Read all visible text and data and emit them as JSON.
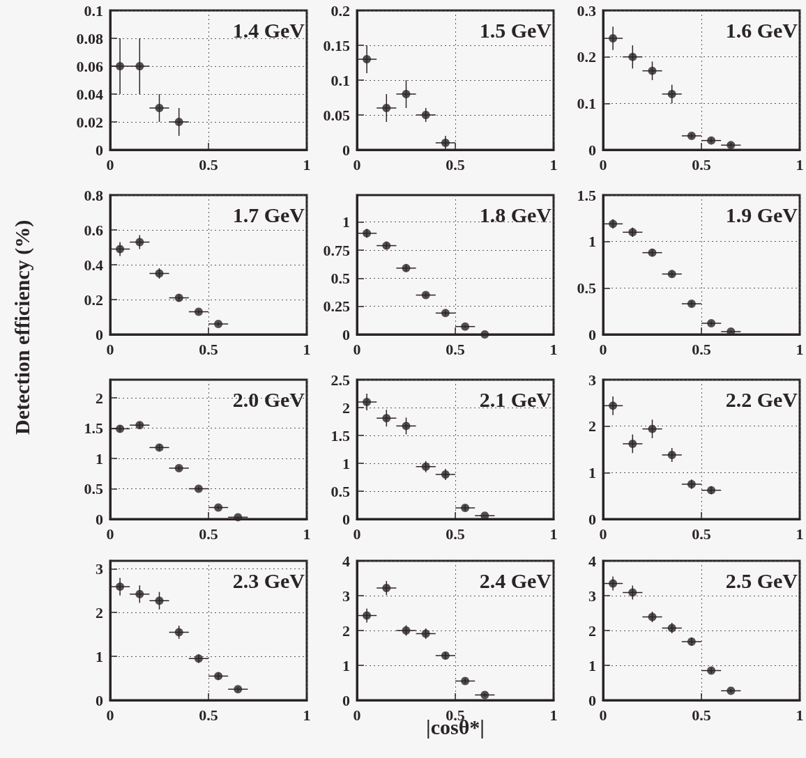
{
  "chart_data": [
    {
      "type": "scatter",
      "title": "1.4 GeV",
      "x": [
        0.05,
        0.15,
        0.25,
        0.35
      ],
      "values": [
        0.06,
        0.06,
        0.03,
        0.02
      ],
      "errors": [
        0.02,
        0.02,
        0.01,
        0.01
      ],
      "xerrors": [
        0.05,
        0.05,
        0.05,
        0.05
      ],
      "xlim": [
        0,
        1
      ],
      "xticks": [
        0,
        0.5,
        1
      ],
      "ylim": [
        0,
        0.1
      ],
      "yticks": [
        0,
        0.02,
        0.04,
        0.06,
        0.08,
        0.1
      ],
      "grid": true,
      "marker": "circle"
    },
    {
      "type": "scatter",
      "title": "1.5 GeV",
      "x": [
        0.05,
        0.15,
        0.25,
        0.35,
        0.45
      ],
      "values": [
        0.13,
        0.06,
        0.08,
        0.05,
        0.01
      ],
      "errors": [
        0.02,
        0.02,
        0.02,
        0.01,
        0.01
      ],
      "xerrors": [
        0.05,
        0.05,
        0.05,
        0.05,
        0.05
      ],
      "xlim": [
        0,
        1
      ],
      "xticks": [
        0,
        0.5,
        1
      ],
      "ylim": [
        0,
        0.2
      ],
      "yticks": [
        0,
        0.05,
        0.1,
        0.15,
        0.2
      ],
      "grid": true,
      "marker": "circle"
    },
    {
      "type": "scatter",
      "title": "1.6 GeV",
      "x": [
        0.05,
        0.15,
        0.25,
        0.35,
        0.45,
        0.55,
        0.65
      ],
      "values": [
        0.24,
        0.2,
        0.17,
        0.12,
        0.03,
        0.02,
        0.01
      ],
      "errors": [
        0.025,
        0.025,
        0.02,
        0.02,
        0.005,
        0.005,
        0.005
      ],
      "xerrors": [
        0.05,
        0.05,
        0.05,
        0.05,
        0.05,
        0.05,
        0.05
      ],
      "xlim": [
        0,
        1
      ],
      "xticks": [
        0,
        0.5,
        1
      ],
      "ylim": [
        0,
        0.3
      ],
      "yticks": [
        0,
        0.1,
        0.2,
        0.3
      ],
      "grid": true,
      "marker": "circle"
    },
    {
      "type": "scatter",
      "title": "1.7 GeV",
      "ylabel": "Detection efficiency (%)",
      "x": [
        0.05,
        0.15,
        0.25,
        0.35,
        0.45,
        0.55
      ],
      "values": [
        0.49,
        0.53,
        0.35,
        0.21,
        0.13,
        0.06
      ],
      "errors": [
        0.04,
        0.04,
        0.03,
        0.02,
        0.01,
        0.01
      ],
      "xerrors": [
        0.05,
        0.05,
        0.05,
        0.05,
        0.05,
        0.05
      ],
      "xlim": [
        0,
        1
      ],
      "xticks": [
        0,
        0.5,
        1
      ],
      "ylim": [
        0,
        0.8
      ],
      "yticks": [
        0,
        0.2,
        0.4,
        0.6,
        0.8
      ],
      "grid": true,
      "marker": "circle"
    },
    {
      "type": "scatter",
      "title": "1.8 GeV",
      "x": [
        0.05,
        0.15,
        0.25,
        0.35,
        0.45,
        0.55,
        0.65
      ],
      "values": [
        0.9,
        0.79,
        0.59,
        0.35,
        0.19,
        0.07,
        0
      ],
      "errors": [
        0.04,
        0.03,
        0.03,
        0.02,
        0.02,
        0.01,
        null
      ],
      "xerrors": [
        0.05,
        0.05,
        0.05,
        0.05,
        0.05,
        0.05,
        0.05
      ],
      "xlim": [
        0,
        1
      ],
      "xticks": [
        0,
        0.5,
        1
      ],
      "ylim": [
        0,
        1.24
      ],
      "yticks": [
        0,
        0.25,
        0.5,
        0.75,
        1
      ],
      "grid": true,
      "marker": "circle"
    },
    {
      "type": "scatter",
      "title": "1.9 GeV",
      "x": [
        0.05,
        0.15,
        0.25,
        0.35,
        0.45,
        0.55,
        0.65
      ],
      "values": [
        1.19,
        1.1,
        0.88,
        0.65,
        0.33,
        0.12,
        0.03
      ],
      "errors": [
        0.05,
        0.05,
        0.04,
        0.03,
        0.03,
        0.02,
        0.01
      ],
      "xerrors": [
        0.05,
        0.05,
        0.05,
        0.05,
        0.05,
        0.05,
        0.05
      ],
      "xlim": [
        0,
        1
      ],
      "xticks": [
        0,
        0.5,
        1
      ],
      "ylim": [
        0,
        1.5
      ],
      "yticks": [
        0,
        0.5,
        1,
        1.5
      ],
      "grid": true,
      "marker": "circle"
    },
    {
      "type": "scatter",
      "title": "2.0 GeV",
      "x": [
        0.05,
        0.15,
        0.25,
        0.35,
        0.45,
        0.55,
        0.65
      ],
      "values": [
        1.49,
        1.55,
        1.18,
        0.84,
        0.5,
        0.19,
        0.03
      ],
      "errors": [
        0.05,
        0.05,
        0.05,
        0.04,
        0.03,
        0.03,
        null
      ],
      "xerrors": [
        0.05,
        0.05,
        0.05,
        0.05,
        0.05,
        0.05,
        0.05
      ],
      "xlim": [
        0,
        1
      ],
      "xticks": [
        0,
        0.5,
        1
      ],
      "ylim": [
        0,
        2.3
      ],
      "yticks": [
        0,
        0.5,
        1,
        1.5,
        2
      ],
      "grid": true,
      "marker": "circle"
    },
    {
      "type": "scatter",
      "title": "2.1 GeV",
      "x": [
        0.05,
        0.15,
        0.25,
        0.35,
        0.45,
        0.55,
        0.65
      ],
      "values": [
        2.1,
        1.81,
        1.67,
        0.94,
        0.8,
        0.2,
        0.06
      ],
      "errors": [
        0.15,
        0.15,
        0.15,
        0.1,
        0.1,
        0.05,
        null
      ],
      "xerrors": [
        0.05,
        0.05,
        0.05,
        0.05,
        0.05,
        0.05,
        0.05
      ],
      "xlim": [
        0,
        1
      ],
      "xticks": [
        0,
        0.5,
        1
      ],
      "ylim": [
        0,
        2.5
      ],
      "yticks": [
        0,
        0.5,
        1,
        1.5,
        2,
        2.5
      ],
      "grid": true,
      "marker": "circle"
    },
    {
      "type": "scatter",
      "title": "2.2 GeV",
      "x": [
        0.05,
        0.15,
        0.25,
        0.35,
        0.45,
        0.55
      ],
      "values": [
        2.44,
        1.62,
        1.94,
        1.38,
        0.75,
        0.62
      ],
      "errors": [
        0.2,
        0.2,
        0.2,
        0.15,
        0.1,
        0.08
      ],
      "xerrors": [
        0.05,
        0.05,
        0.05,
        0.05,
        0.05,
        0.05
      ],
      "xlim": [
        0,
        1
      ],
      "xticks": [
        0,
        0.5,
        1
      ],
      "ylim": [
        0,
        3
      ],
      "yticks": [
        0,
        1,
        2,
        3
      ],
      "grid": true,
      "marker": "circle"
    },
    {
      "type": "scatter",
      "title": "2.3 GeV",
      "x": [
        0.05,
        0.15,
        0.25,
        0.35,
        0.45,
        0.55,
        0.65
      ],
      "values": [
        2.59,
        2.42,
        2.27,
        1.55,
        0.95,
        0.55,
        0.25
      ],
      "errors": [
        0.2,
        0.2,
        0.2,
        0.15,
        0.1,
        0.08,
        0.05
      ],
      "xerrors": [
        0.05,
        0.05,
        0.05,
        0.05,
        0.05,
        0.05,
        0.05
      ],
      "xlim": [
        0,
        1
      ],
      "xticks": [
        0,
        0.5,
        1
      ],
      "ylim": [
        0,
        3.18
      ],
      "yticks": [
        0,
        1,
        2,
        3
      ],
      "grid": true,
      "marker": "circle"
    },
    {
      "type": "scatter",
      "title": "2.4 GeV",
      "xlabel": "|cosθ*|",
      "x": [
        0.05,
        0.15,
        0.25,
        0.35,
        0.45,
        0.55,
        0.65
      ],
      "values": [
        2.43,
        3.22,
        2.0,
        1.91,
        1.28,
        0.55,
        0.15
      ],
      "errors": [
        0.2,
        0.2,
        0.15,
        0.15,
        0.1,
        0.08,
        0.05
      ],
      "xerrors": [
        0.05,
        0.05,
        0.05,
        0.05,
        0.05,
        0.05,
        0.05
      ],
      "xlim": [
        0,
        1
      ],
      "xticks": [
        0,
        0.5,
        1
      ],
      "ylim": [
        0,
        4
      ],
      "yticks": [
        0,
        1,
        2,
        3,
        4
      ],
      "grid": true,
      "marker": "circle"
    },
    {
      "type": "scatter",
      "title": "2.5 GeV",
      "x": [
        0.05,
        0.15,
        0.25,
        0.35,
        0.45,
        0.55,
        0.65
      ],
      "values": [
        3.35,
        3.09,
        2.39,
        2.07,
        1.68,
        0.85,
        0.27
      ],
      "errors": [
        0.2,
        0.2,
        0.15,
        0.15,
        0.12,
        0.08,
        0.05
      ],
      "xerrors": [
        0.05,
        0.05,
        0.05,
        0.05,
        0.05,
        0.05,
        0.05
      ],
      "xlim": [
        0,
        1
      ],
      "xticks": [
        0,
        0.5,
        1
      ],
      "ylim": [
        0,
        4
      ],
      "yticks": [
        0,
        1,
        2,
        3,
        4
      ],
      "grid": true,
      "marker": "circle"
    }
  ]
}
